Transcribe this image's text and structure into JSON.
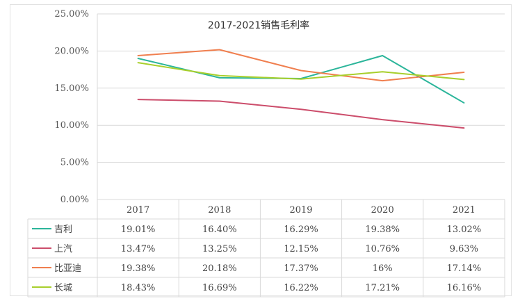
{
  "chart_data": {
    "type": "line",
    "title": "2017-2021销售毛利率",
    "categories": [
      "2017",
      "2018",
      "2019",
      "2020",
      "2021"
    ],
    "y_ticks": [
      "25.00%",
      "20.00%",
      "15.00%",
      "10.00%",
      "5.00%",
      "0.00%"
    ],
    "ylim": [
      0,
      25
    ],
    "grid": true,
    "legend_placement": "data-table",
    "series": [
      {
        "name": "吉利",
        "color": "#2bb59a",
        "values": [
          19.01,
          16.4,
          16.29,
          19.38,
          13.02
        ],
        "labels": [
          "19.01%",
          "16.40%",
          "16.29%",
          "19.38%",
          "13.02%"
        ]
      },
      {
        "name": "上汽",
        "color": "#cc4d6b",
        "values": [
          13.47,
          13.25,
          12.15,
          10.76,
          9.63
        ],
        "labels": [
          "13.47%",
          "13.25%",
          "12.15%",
          "10.76%",
          "9.63%"
        ]
      },
      {
        "name": "比亚迪",
        "color": "#f07f4f",
        "values": [
          19.38,
          20.18,
          17.37,
          16,
          17.14
        ],
        "labels": [
          "19.38%",
          "20.18%",
          "17.37%",
          "16%",
          "17.14%"
        ]
      },
      {
        "name": "长城",
        "color": "#a8cf2c",
        "values": [
          18.43,
          16.69,
          16.22,
          17.21,
          16.16
        ],
        "labels": [
          "18.43%",
          "16.69%",
          "16.22%",
          "17.21%",
          "16.16%"
        ]
      }
    ]
  }
}
